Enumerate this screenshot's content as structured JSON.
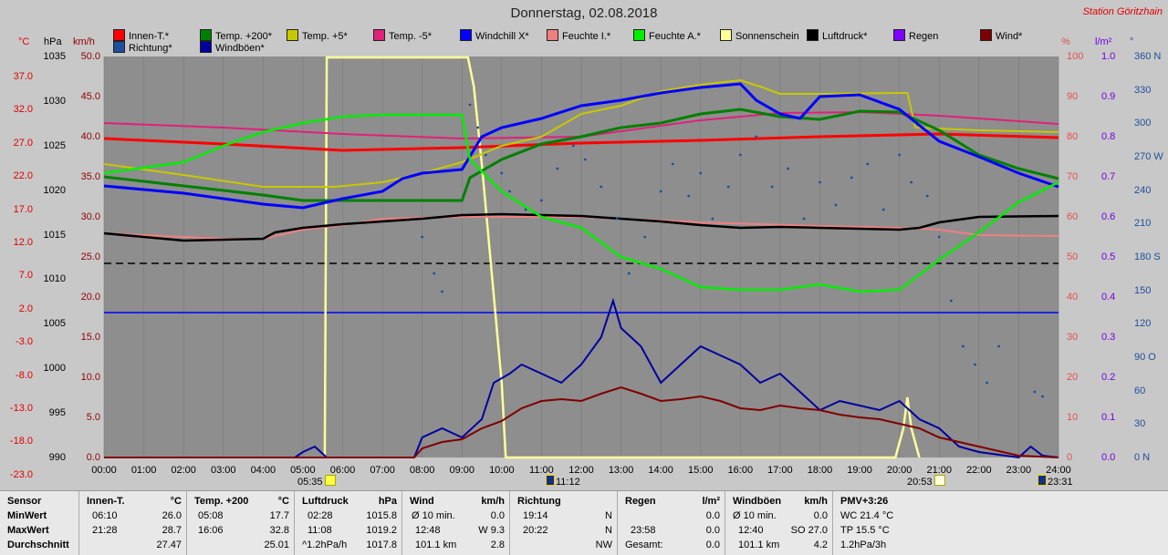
{
  "title": "Donnerstag, 02.08.2018",
  "station": "Station Göritzhain",
  "legend": [
    {
      "label": "Innen-T.*",
      "color": "#ff0000"
    },
    {
      "label": "Temp. +200*",
      "color": "#008000"
    },
    {
      "label": "Temp. +5*",
      "color": "#c8c800"
    },
    {
      "label": "Temp. -5*",
      "color": "#e0207a"
    },
    {
      "label": "Windchill X*",
      "color": "#0000ff"
    },
    {
      "label": "Feuchte I.*",
      "color": "#f08080"
    },
    {
      "label": "Feuchte A.*",
      "color": "#00ee00"
    },
    {
      "label": "Sonnenschein",
      "color": "#ffff99"
    },
    {
      "label": "Luftdruck*",
      "color": "#000000"
    },
    {
      "label": "Regen",
      "color": "#8000ff"
    },
    {
      "label": "Wind*",
      "color": "#800000"
    },
    {
      "label": "Richtung*",
      "color": "#1f4e9b"
    },
    {
      "label": "Windböen*",
      "color": "#0000a0"
    }
  ],
  "axes": {
    "celsius": {
      "head": "°C",
      "ticks": [
        "37.0",
        "32.0",
        "27.0",
        "22.0",
        "17.0",
        "12.0",
        "7.0",
        "2.0",
        "-3.0",
        "-8.0",
        "-13.0",
        "-18.0",
        "-23.0"
      ]
    },
    "hpa": {
      "head": "hPa",
      "ticks": [
        "1035",
        "1030",
        "1025",
        "1020",
        "1015",
        "1010",
        "1005",
        "1000",
        "995",
        "990"
      ]
    },
    "kmh": {
      "head": "km/h",
      "ticks": [
        "50.0",
        "45.0",
        "40.0",
        "35.0",
        "30.0",
        "25.0",
        "20.0",
        "15.0",
        "10.0",
        "5.0",
        "0.0"
      ]
    },
    "percent": {
      "head": "%",
      "ticks": [
        "100",
        "90",
        "80",
        "70",
        "60",
        "50",
        "40",
        "30",
        "20",
        "10",
        "0"
      ]
    },
    "lm2": {
      "head": "l/m²",
      "ticks": [
        "1.0",
        "0.9",
        "0.8",
        "0.7",
        "0.6",
        "0.5",
        "0.4",
        "0.3",
        "0.2",
        "0.1",
        "0.0"
      ]
    },
    "deg": {
      "head": "°",
      "ticks": [
        "360 N",
        "330",
        "300",
        "270 W",
        "240",
        "210",
        "180 S",
        "150",
        "120",
        "90 O",
        "60",
        "30",
        "0 N"
      ]
    }
  },
  "xticks": [
    "00:00",
    "01:00",
    "02:00",
    "03:00",
    "04:00",
    "05:00",
    "06:00",
    "07:00",
    "08:00",
    "09:00",
    "10:00",
    "11:00",
    "12:00",
    "13:00",
    "14:00",
    "15:00",
    "16:00",
    "17:00",
    "18:00",
    "19:00",
    "20:00",
    "21:00",
    "22:00",
    "23:00",
    "24:00"
  ],
  "markers": {
    "sunrise": "05:35",
    "noon": "11:12",
    "sunset": "20:53",
    "moon": "23:31"
  },
  "footer": {
    "rowlabels": {
      "sensor": "Sensor",
      "min": "MinWert",
      "max": "MaxWert",
      "avg": "Durchschnitt"
    },
    "innen": {
      "head": "Innen-T.",
      "unit": "°C",
      "min_t": "06:10",
      "min_v": "26.0",
      "max_t": "21:28",
      "max_v": "28.7",
      "avg_v": "27.47"
    },
    "temp": {
      "head": "Temp. +200",
      "unit": "°C",
      "min_t": "05:08",
      "min_v": "17.7",
      "max_t": "16:06",
      "max_v": "32.8",
      "avg_v": "25.01"
    },
    "luft": {
      "head": "Luftdruck",
      "unit": "hPa",
      "min_t": "02:28",
      "min_v": "1015.8",
      "max_t": "11:08",
      "max_v": "1019.2",
      "avg_t": "^1.2hPa/h",
      "avg_v": "1017.8"
    },
    "wind": {
      "head": "Wind",
      "unit": "km/h",
      "min_t": "Ø 10 min.",
      "min_v": "0.0",
      "max_t": "12:48",
      "max_v": "W 9.3",
      "avg_t": "101.1 km",
      "avg_v": "2.8"
    },
    "richtung": {
      "head": "Richtung",
      "min_t": "19:14",
      "min_v": "N",
      "max_t": "20:22",
      "max_v": "N",
      "avg_v": "NW"
    },
    "regen": {
      "head": "Regen",
      "unit": "l/m²",
      "min_v": "0.0",
      "max_t": "23:58",
      "max_v": "0.0",
      "avg_t": "Gesamt:",
      "avg_v": "0.0"
    },
    "boeen": {
      "head": "Windböen",
      "unit": "km/h",
      "min_t": "Ø 10 min.",
      "min_v": "0.0",
      "max_t": "12:40",
      "max_v": "SO 27.0",
      "avg_t": "101.1 km",
      "avg_v": "4.2"
    },
    "pmv": {
      "head": "PMV+3:26",
      "l1": "WC 21.4 °C",
      "l2": "TP 15.5 °C",
      "l3": "1.2hPa/3h"
    }
  }
}
